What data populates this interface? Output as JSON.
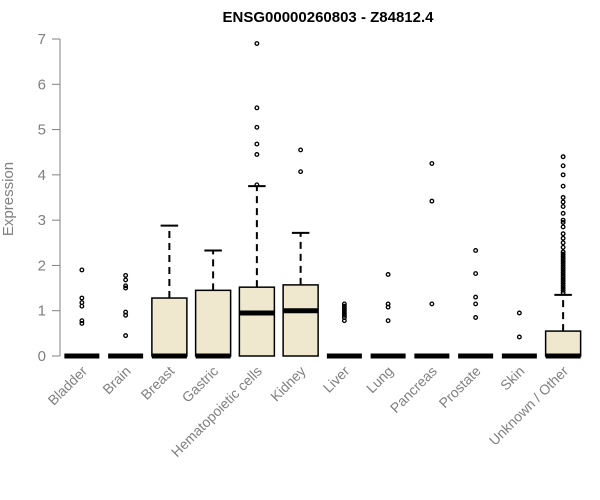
{
  "chart_data": {
    "type": "boxplot",
    "title": "ENSG00000260803 - Z84812.4",
    "ylabel": "Expression",
    "xlabel": "",
    "ylim": [
      0,
      7
    ],
    "yticks": [
      0,
      1,
      2,
      3,
      4,
      5,
      6,
      7
    ],
    "box_fill": "#efe7ce",
    "categories": [
      "Bladder",
      "Brain",
      "Breast",
      "Gastric",
      "Hematopoietic cells",
      "Kidney",
      "Liver",
      "Lung",
      "Pancreas",
      "Prostate",
      "Skin",
      "Unknown / Other"
    ],
    "boxes": [
      {
        "category": "Bladder",
        "q1": 0,
        "median": 0,
        "q3": 0,
        "whisker_low": 0,
        "whisker_high": 0,
        "outliers": [
          0.72,
          0.78,
          1.1,
          1.18,
          1.28,
          1.9
        ]
      },
      {
        "category": "Brain",
        "q1": 0,
        "median": 0,
        "q3": 0,
        "whisker_low": 0,
        "whisker_high": 0,
        "outliers": [
          0.45,
          0.9,
          0.97,
          1.5,
          1.55,
          1.68,
          1.78
        ]
      },
      {
        "category": "Breast",
        "q1": 0,
        "median": 0,
        "q3": 1.28,
        "whisker_low": 0,
        "whisker_high": 2.88,
        "outliers": []
      },
      {
        "category": "Gastric",
        "q1": 0,
        "median": 0,
        "q3": 1.45,
        "whisker_low": 0,
        "whisker_high": 2.33,
        "outliers": []
      },
      {
        "category": "Hematopoietic cells",
        "q1": 0,
        "median": 0.95,
        "q3": 1.52,
        "whisker_low": 0,
        "whisker_high": 3.75,
        "outliers": [
          3.78,
          4.45,
          4.68,
          5.05,
          5.48,
          6.9
        ]
      },
      {
        "category": "Kidney",
        "q1": 0,
        "median": 1.0,
        "q3": 1.57,
        "whisker_low": 0,
        "whisker_high": 2.72,
        "outliers": [
          4.07,
          4.55
        ]
      },
      {
        "category": "Liver",
        "q1": 0,
        "median": 0,
        "q3": 0,
        "whisker_low": 0,
        "whisker_high": 0,
        "outliers": [
          0.78,
          0.85,
          0.9,
          0.95,
          1.0,
          1.05,
          1.1,
          1.15
        ]
      },
      {
        "category": "Lung",
        "q1": 0,
        "median": 0,
        "q3": 0,
        "whisker_low": 0,
        "whisker_high": 0,
        "outliers": [
          0.78,
          1.08,
          1.15,
          1.8
        ]
      },
      {
        "category": "Pancreas",
        "q1": 0,
        "median": 0,
        "q3": 0,
        "whisker_low": 0,
        "whisker_high": 0,
        "outliers": [
          1.15,
          3.42,
          4.25
        ]
      },
      {
        "category": "Prostate",
        "q1": 0,
        "median": 0,
        "q3": 0,
        "whisker_low": 0,
        "whisker_high": 0,
        "outliers": [
          0.85,
          1.15,
          1.3,
          1.82,
          2.33
        ]
      },
      {
        "category": "Skin",
        "q1": 0,
        "median": 0,
        "q3": 0,
        "whisker_low": 0,
        "whisker_high": 0,
        "outliers": [
          0.42,
          0.95
        ]
      },
      {
        "category": "Unknown / Other",
        "q1": 0,
        "median": 0,
        "q3": 0.55,
        "whisker_low": 0,
        "whisker_high": 1.35,
        "outliers": [
          1.4,
          1.45,
          1.5,
          1.55,
          1.6,
          1.65,
          1.7,
          1.75,
          1.8,
          1.85,
          1.9,
          1.95,
          2.0,
          2.05,
          2.1,
          2.15,
          2.2,
          2.25,
          2.3,
          2.4,
          2.5,
          2.6,
          2.7,
          2.85,
          2.95,
          3.0,
          3.15,
          3.3,
          3.4,
          3.5,
          3.75,
          4.0,
          4.2,
          4.4
        ]
      }
    ]
  }
}
